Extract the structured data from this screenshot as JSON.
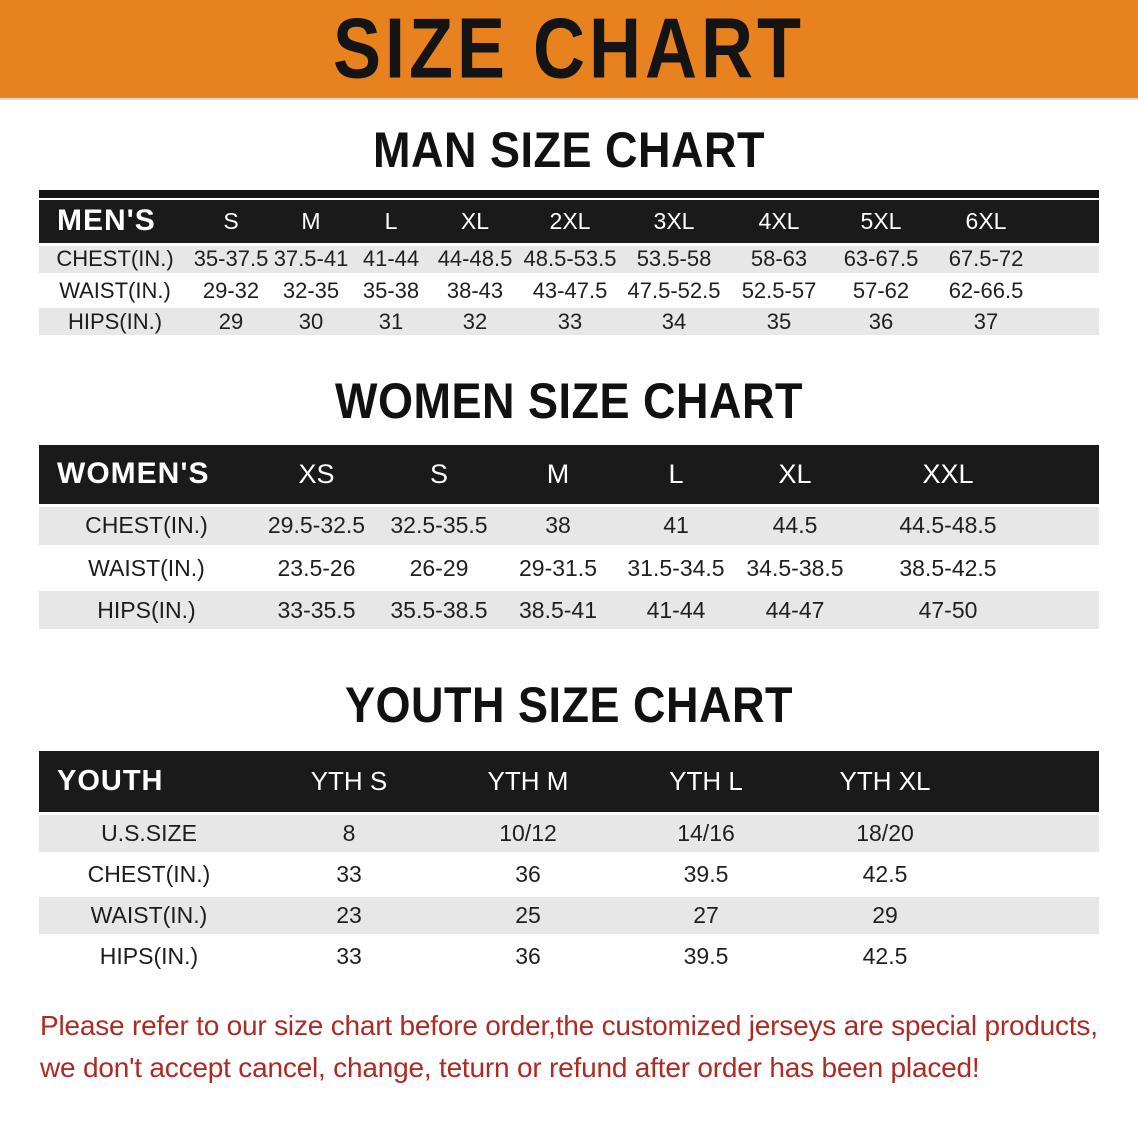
{
  "banner": {
    "title": "SIZE CHART"
  },
  "colors": {
    "banner_bg": "#e8821e",
    "header_bar": "#1a1a1a",
    "stripe": "#e7e7e7",
    "note_red": "#ac2b24"
  },
  "sections": {
    "men": {
      "heading": "MAN SIZE CHART",
      "table": {
        "corner_label": "MEN'S",
        "columns": [
          "S",
          "M",
          "L",
          "XL",
          "2XL",
          "3XL",
          "4XL",
          "5XL",
          "6XL"
        ],
        "rows": [
          {
            "label": "CHEST(IN.)",
            "values": [
              "35-37.5",
              "37.5-41",
              "41-44",
              "44-48.5",
              "48.5-53.5",
              "53.5-58",
              "58-63",
              "63-67.5",
              "67.5-72"
            ]
          },
          {
            "label": "WAIST(IN.)",
            "values": [
              "29-32",
              "32-35",
              "35-38",
              "38-43",
              "43-47.5",
              "47.5-52.5",
              "52.5-57",
              "57-62",
              "62-66.5"
            ]
          },
          {
            "label": "HIPS(IN.)",
            "values": [
              "29",
              "30",
              "31",
              "32",
              "33",
              "34",
              "35",
              "36",
              "37"
            ]
          }
        ]
      }
    },
    "women": {
      "heading": "WOMEN SIZE CHART",
      "table": {
        "corner_label": "WOMEN'S",
        "columns": [
          "XS",
          "S",
          "M",
          "L",
          "XL",
          "XXL"
        ],
        "rows": [
          {
            "label": "CHEST(IN.)",
            "values": [
              "29.5-32.5",
              "32.5-35.5",
              "38",
              "41",
              "44.5",
              "44.5-48.5"
            ]
          },
          {
            "label": "WAIST(IN.)",
            "values": [
              "23.5-26",
              "26-29",
              "29-31.5",
              "31.5-34.5",
              "34.5-38.5",
              "38.5-42.5"
            ]
          },
          {
            "label": "HIPS(IN.)",
            "values": [
              "33-35.5",
              "35.5-38.5",
              "38.5-41",
              "41-44",
              "44-47",
              "47-50"
            ]
          }
        ]
      }
    },
    "youth": {
      "heading": "YOUTH SIZE CHART",
      "table": {
        "corner_label": "YOUTH",
        "columns": [
          "YTH S",
          "YTH M",
          "YTH L",
          "YTH XL"
        ],
        "rows": [
          {
            "label": "U.S.SIZE",
            "values": [
              "8",
              "10/12",
              "14/16",
              "18/20"
            ]
          },
          {
            "label": "CHEST(IN.)",
            "values": [
              "33",
              "36",
              "39.5",
              "42.5"
            ]
          },
          {
            "label": "WAIST(IN.)",
            "values": [
              "23",
              "25",
              "27",
              "29"
            ]
          },
          {
            "label": "HIPS(IN.)",
            "values": [
              "33",
              "36",
              "39.5",
              "42.5"
            ]
          }
        ]
      }
    }
  },
  "footer_note": {
    "line1": "Please refer to our size chart before order,the customized jerseys are special products,",
    "line2": "we don't accept cancel, change, teturn or refund after order has been placed!"
  }
}
